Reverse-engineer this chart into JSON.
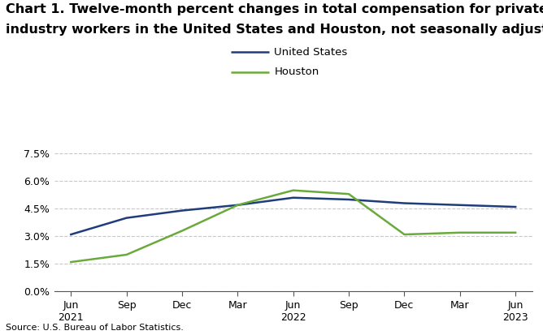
{
  "title_line1": "Chart 1. Twelve-month percent changes in total compensation for private",
  "title_line2": "industry workers in the United States and Houston, not seasonally adjusted",
  "x_labels": [
    "Jun\n2021",
    "Sep",
    "Dec",
    "Mar",
    "Jun\n2022",
    "Sep",
    "Dec",
    "Mar",
    "Jun\n2023"
  ],
  "us_values": [
    3.1,
    4.0,
    4.4,
    4.7,
    5.1,
    5.0,
    4.8,
    4.7,
    4.6
  ],
  "houston_values": [
    1.6,
    2.0,
    3.3,
    4.7,
    5.5,
    5.3,
    3.1,
    3.2,
    3.2
  ],
  "us_color": "#1f3d7a",
  "houston_color": "#6aaa3a",
  "us_label": "United States",
  "houston_label": "Houston",
  "yticks": [
    0.0,
    1.5,
    3.0,
    4.5,
    6.0,
    7.5
  ],
  "ylim": [
    0.0,
    8.2
  ],
  "source": "Source: U.S. Bureau of Labor Statistics.",
  "background_color": "#ffffff",
  "grid_color": "#c8c8c8",
  "line_width": 1.8,
  "title_fontsize": 11.5,
  "legend_fontsize": 9.5,
  "tick_fontsize": 9,
  "source_fontsize": 8
}
